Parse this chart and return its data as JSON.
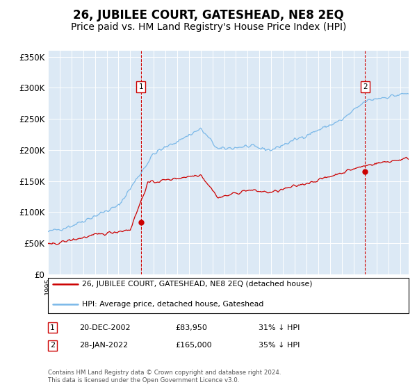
{
  "title": "26, JUBILEE COURT, GATESHEAD, NE8 2EQ",
  "subtitle": "Price paid vs. HM Land Registry's House Price Index (HPI)",
  "title_fontsize": 12,
  "subtitle_fontsize": 10,
  "background_color": "#dce9f5",
  "hpi_color": "#7ab8e8",
  "price_color": "#cc0000",
  "legend_line1": "26, JUBILEE COURT, GATESHEAD, NE8 2EQ (detached house)",
  "legend_line2": "HPI: Average price, detached house, Gateshead",
  "footer": "Contains HM Land Registry data © Crown copyright and database right 2024.\nThis data is licensed under the Open Government Licence v3.0.",
  "ylim": [
    0,
    360000
  ],
  "yticks": [
    0,
    50000,
    100000,
    150000,
    200000,
    250000,
    300000,
    350000
  ],
  "ytick_labels": [
    "£0",
    "£50K",
    "£100K",
    "£150K",
    "£200K",
    "£250K",
    "£300K",
    "£350K"
  ],
  "year_start": 1995,
  "year_end": 2025,
  "m1_year": 2002,
  "m1_month": 11,
  "m1_price": 83950,
  "m2_year": 2022,
  "m2_month": 0,
  "m2_price": 165000
}
